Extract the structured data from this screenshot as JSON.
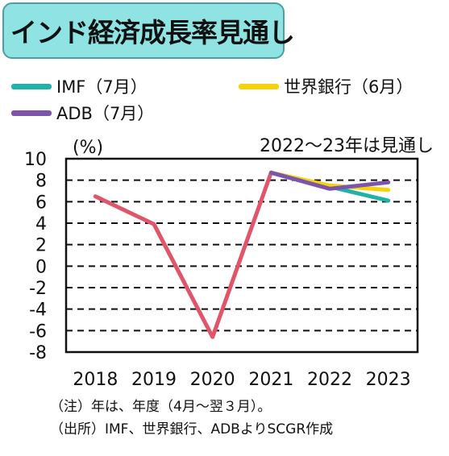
{
  "title": "インド経済成長率見通し",
  "colors": {
    "imf": "#20b2a8",
    "worldbank": "#f5d20a",
    "adb": "#7c54ac",
    "actual": "#e0556a",
    "title_bg": "#8fe3e3"
  },
  "legend": [
    {
      "label": "IMF（7月）",
      "color_key": "imf"
    },
    {
      "label": "世界銀行（6月）",
      "color_key": "worldbank"
    },
    {
      "label": "ADB（7月）",
      "color_key": "adb"
    }
  ],
  "notes": {
    "note1": "（注）年は、年度（4月～翌３月）。",
    "note2": "（出所）IMF、世界銀行、ADBよりSCGR作成"
  },
  "chart_data": {
    "type": "line",
    "ylabel": "(%)",
    "annotation": "2022～23年は見通し",
    "categories": [
      "2018",
      "2019",
      "2020",
      "2021",
      "2022",
      "2023"
    ],
    "ylim": [
      -8,
      10
    ],
    "yticks": [
      "10",
      "8",
      "6",
      "4",
      "2",
      "0",
      "-2",
      "-4",
      "-6",
      "-8"
    ],
    "grid": true,
    "series": [
      {
        "name": "",
        "color_key": "actual",
        "values": [
          6.5,
          3.9,
          -6.6,
          8.7,
          null,
          null
        ]
      },
      {
        "name": "IMF（7月）",
        "color_key": "imf",
        "values": [
          null,
          null,
          null,
          8.7,
          7.4,
          6.1
        ]
      },
      {
        "name": "世界銀行（6月）",
        "color_key": "worldbank",
        "values": [
          null,
          null,
          null,
          8.7,
          7.5,
          7.1
        ]
      },
      {
        "name": "ADB（7月）",
        "color_key": "adb",
        "values": [
          null,
          null,
          null,
          8.7,
          7.2,
          7.8
        ]
      }
    ]
  }
}
